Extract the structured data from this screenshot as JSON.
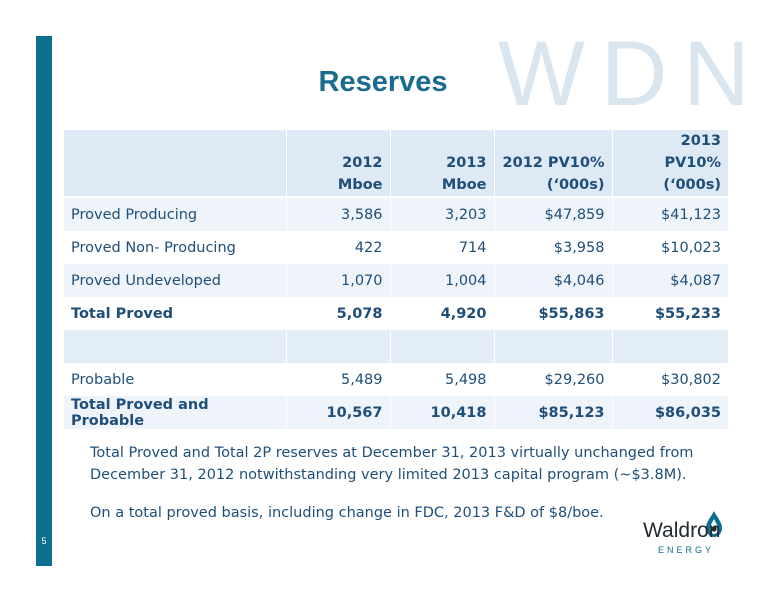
{
  "watermark": "WDN",
  "title": "Reserves",
  "page_number": "5",
  "table": {
    "headers": [
      "",
      "2012 Mboe",
      "2013 Mboe",
      "2012 PV10%\n(‘000s)",
      "2013 PV10%\n(‘000s)"
    ],
    "rows": [
      [
        "Proved Producing",
        "3,586",
        "3,203",
        "$47,859",
        "$41,123"
      ],
      [
        "Proved Non- Producing",
        "422",
        "714",
        "$3,958",
        "$10,023"
      ],
      [
        "Proved Undeveloped",
        "1,070",
        "1,004",
        "$4,046",
        "$4,087"
      ],
      [
        "Total Proved",
        "5,078",
        "4,920",
        "$55,863",
        "$55,233"
      ],
      [
        "",
        "",
        "",
        "",
        ""
      ],
      [
        "Probable",
        "5,489",
        "5,498",
        "$29,260",
        "$30,802"
      ],
      [
        "Total Proved and Probable",
        "10,567",
        "10,418",
        "$85,123",
        "$86,035"
      ]
    ]
  },
  "notes": [
    "Total Proved and Total 2P reserves at December 31, 2013 virtually unchanged from December 31, 2012 notwithstanding very limited 2013 capital program (~$3.8M).",
    "On a total proved basis, including change in FDC, 2013 F&D of $8/boe."
  ],
  "logo": {
    "word": "Waldron",
    "sub": "ENERGY",
    "icon": "flame-drop-icon",
    "accent": "#0d6f8f"
  },
  "colors": {
    "side_bar": "#0d6f8f",
    "title": "#1a6b90",
    "text": "#1f4e79",
    "watermark": "#d9e6ef",
    "header_bg": "#dde9f4",
    "row_bg": "#eef4fa"
  }
}
